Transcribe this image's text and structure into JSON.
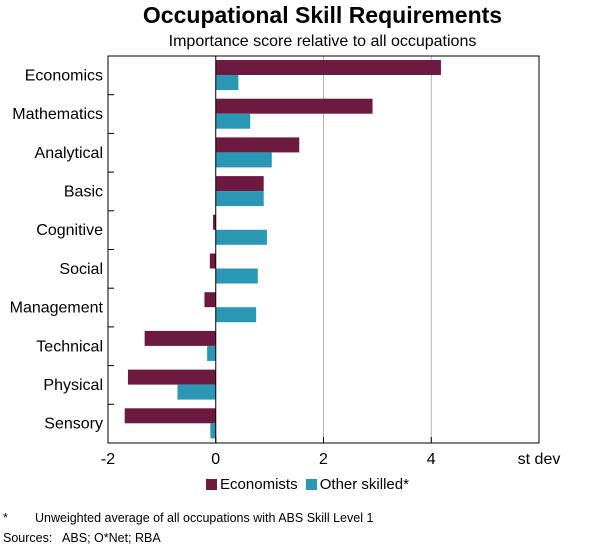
{
  "header": {
    "title": "Occupational Skill Requirements",
    "subtitle": "Importance score relative to all occupations"
  },
  "footer": {
    "footnote_mark": "*",
    "footnote_text": "Unweighted average of all occupations with ABS Skill Level 1",
    "sources": "Sources:   ABS; O*Net; RBA"
  },
  "chart_data": {
    "type": "bar",
    "orientation": "horizontal",
    "title": "Occupational Skill Requirements",
    "subtitle": "Importance score relative to all occupations",
    "categories": [
      "Economics",
      "Mathematics",
      "Analytical",
      "Basic",
      "Cognitive",
      "Social",
      "Management",
      "Technical",
      "Physical",
      "Sensory"
    ],
    "series": [
      {
        "name": "Economists",
        "color": "#6d1a40",
        "values": [
          4.18,
          2.91,
          1.55,
          0.89,
          -0.05,
          -0.11,
          -0.21,
          -1.32,
          -1.63,
          -1.69
        ]
      },
      {
        "name": "Other skilled*",
        "color": "#2a97b5",
        "values": [
          0.42,
          0.64,
          1.04,
          0.89,
          0.95,
          0.78,
          0.75,
          -0.16,
          -0.71,
          -0.1
        ]
      }
    ],
    "xlim": [
      -2,
      6
    ],
    "xticks": [
      -2,
      0,
      2,
      4
    ],
    "x_tick_labels": [
      "-2",
      "0",
      "2",
      "4"
    ],
    "xlabel": "st dev",
    "grid": "vertical",
    "legend": "bottom"
  }
}
